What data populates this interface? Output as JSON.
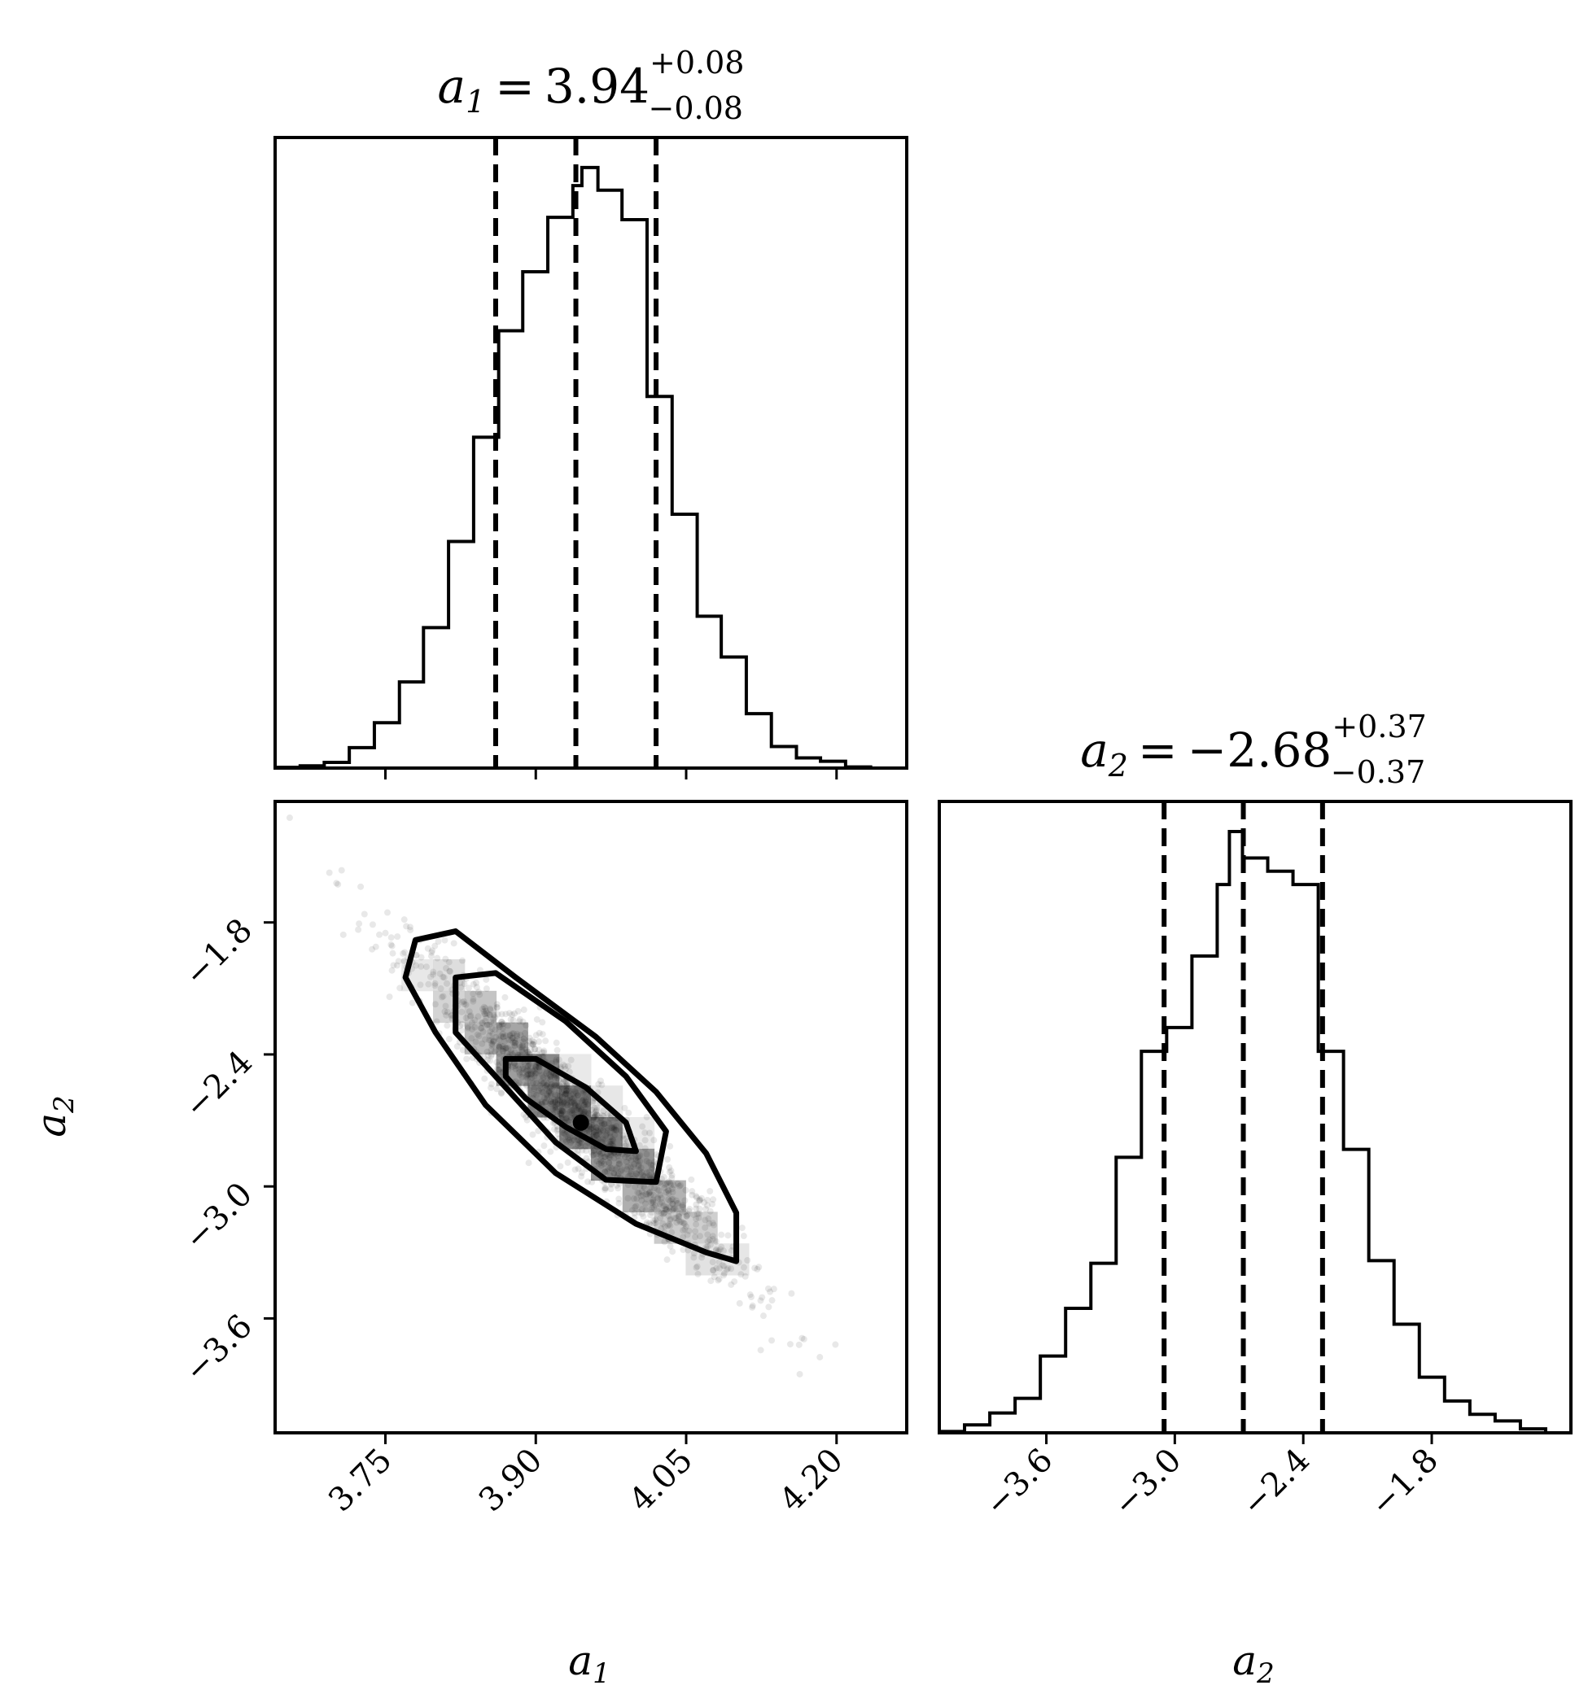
{
  "chart_data": {
    "type": "corner",
    "parameters": [
      {
        "symbol": "a",
        "subscript": "1",
        "title_value": "3.94",
        "title_plus": "+0.08",
        "title_minus": "−0.08",
        "equals": "=",
        "median": 3.94,
        "q16": 3.86,
        "q84": 4.02,
        "xlim": [
          3.64,
          4.27
        ],
        "ticks": [
          3.75,
          3.9,
          4.05,
          4.2
        ],
        "tick_labels": [
          "3.75",
          "3.90",
          "4.05",
          "4.20"
        ],
        "hist": {
          "bin_width": 0.02475,
          "bins_left": [
            3.64,
            3.665,
            3.689,
            3.714,
            3.739,
            3.764,
            3.788,
            3.813,
            3.838,
            3.863,
            3.887,
            3.912,
            3.937,
            3.946,
            3.962,
            3.986,
            4.011,
            4.036,
            4.061,
            4.085,
            4.11,
            4.135,
            4.16,
            4.184,
            4.209,
            4.234
          ],
          "counts": [
            3,
            10,
            25,
            90,
            200,
            380,
            620,
            1000,
            1460,
            1930,
            2190,
            2430,
            2570,
            2650,
            2550,
            2420,
            1640,
            1120,
            670,
            490,
            240,
            95,
            45,
            30,
            5,
            0
          ]
        }
      },
      {
        "symbol": "a",
        "subscript": "2",
        "title_value": "−2.68",
        "title_plus": "+0.37",
        "title_minus": "−0.37",
        "equals": "=",
        "median": -2.68,
        "q16": -3.05,
        "q84": -2.31,
        "xlim": [
          -4.1,
          -1.15
        ],
        "ticks": [
          -3.6,
          -3.0,
          -2.4,
          -1.8
        ],
        "tick_labels": [
          "−3.6",
          "−3.0",
          "−2.4",
          "−1.8"
        ],
        "hist": {
          "bin_width": 0.118,
          "bins_left": [
            -4.1,
            -3.982,
            -3.864,
            -3.746,
            -3.628,
            -3.51,
            -3.392,
            -3.274,
            -3.156,
            -3.038,
            -2.92,
            -2.802,
            -2.745,
            -2.684,
            -2.566,
            -2.448,
            -2.33,
            -2.212,
            -2.094,
            -1.976,
            -1.858,
            -1.74,
            -1.622,
            -1.504,
            -1.386,
            -1.268
          ],
          "counts": [
            5,
            30,
            75,
            130,
            290,
            470,
            640,
            1040,
            1440,
            1530,
            1800,
            2070,
            2270,
            2170,
            2120,
            2070,
            1440,
            1070,
            650,
            410,
            210,
            120,
            70,
            45,
            15,
            0
          ]
        }
      }
    ],
    "pair": {
      "x_param": "a_1",
      "y_param": "a_2",
      "xlim": [
        3.64,
        4.27
      ],
      "ylim": [
        -4.12,
        -1.25
      ],
      "y_ticks": [
        -1.8,
        -2.4,
        -3.0,
        -3.6
      ],
      "y_tick_labels": [
        "−1.8",
        "−2.4",
        "−3.0",
        "−3.6"
      ],
      "contours": {
        "outer": [
          [
            3.78,
            -1.88
          ],
          [
            3.82,
            -1.84
          ],
          [
            3.88,
            -2.05
          ],
          [
            3.96,
            -2.32
          ],
          [
            4.02,
            -2.57
          ],
          [
            4.07,
            -2.85
          ],
          [
            4.1,
            -3.12
          ],
          [
            4.1,
            -3.34
          ],
          [
            4.07,
            -3.3
          ],
          [
            4.0,
            -3.17
          ],
          [
            3.92,
            -2.94
          ],
          [
            3.85,
            -2.63
          ],
          [
            3.8,
            -2.3
          ],
          [
            3.77,
            -2.05
          ]
        ],
        "middle": [
          [
            3.82,
            -2.05
          ],
          [
            3.86,
            -2.03
          ],
          [
            3.93,
            -2.25
          ],
          [
            3.99,
            -2.5
          ],
          [
            4.03,
            -2.75
          ],
          [
            4.02,
            -2.98
          ],
          [
            3.97,
            -2.97
          ],
          [
            3.92,
            -2.8
          ],
          [
            3.87,
            -2.55
          ],
          [
            3.82,
            -2.3
          ]
        ],
        "inner": [
          [
            3.87,
            -2.42
          ],
          [
            3.9,
            -2.42
          ],
          [
            3.95,
            -2.55
          ],
          [
            3.99,
            -2.71
          ],
          [
            4.0,
            -2.84
          ],
          [
            3.97,
            -2.83
          ],
          [
            3.93,
            -2.73
          ],
          [
            3.89,
            -2.6
          ],
          [
            3.87,
            -2.5
          ]
        ]
      },
      "density": {
        "mean": [
          3.94,
          -2.68
        ],
        "std": [
          0.082,
          0.37
        ],
        "correlation": -0.96
      }
    },
    "xlabels": [
      {
        "symbol": "a",
        "subscript": "1"
      },
      {
        "symbol": "a",
        "subscript": "2"
      }
    ],
    "ylabel": {
      "symbol": "a",
      "subscript": "2"
    },
    "line_color": "#000000",
    "point_color": "#000000"
  }
}
